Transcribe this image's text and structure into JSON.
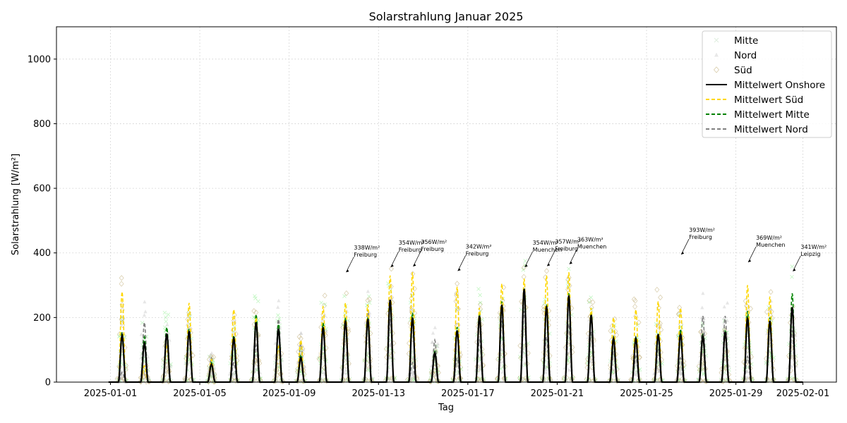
{
  "chart_data": {
    "type": "line",
    "title": "Solarstrahlung Januar 2025",
    "xlabel": "Tag",
    "ylabel": "Solarstrahlung [W/m²]",
    "xlim": [
      "2024-12-29T14:00",
      "2025-02-02T12:00"
    ],
    "ylim": [
      0,
      1100
    ],
    "grid": true,
    "legend_position": "top-right",
    "x_ticks": [
      "2025-01-01",
      "2025-01-05",
      "2025-01-09",
      "2025-01-13",
      "2025-01-17",
      "2025-01-21",
      "2025-01-25",
      "2025-01-29",
      "2025-02-01"
    ],
    "y_ticks": [
      0,
      200,
      400,
      600,
      800,
      1000
    ],
    "days": [
      "2025-01-01",
      "2025-01-02",
      "2025-01-03",
      "2025-01-04",
      "2025-01-05",
      "2025-01-06",
      "2025-01-07",
      "2025-01-08",
      "2025-01-09",
      "2025-01-10",
      "2025-01-11",
      "2025-01-12",
      "2025-01-13",
      "2025-01-14",
      "2025-01-15",
      "2025-01-16",
      "2025-01-17",
      "2025-01-18",
      "2025-01-19",
      "2025-01-20",
      "2025-01-21",
      "2025-01-22",
      "2025-01-23",
      "2025-01-24",
      "2025-01-25",
      "2025-01-26",
      "2025-01-27",
      "2025-01-28",
      "2025-01-29",
      "2025-01-30",
      "2025-01-31"
    ],
    "series": [
      {
        "name": "Mittelwert Onshore",
        "color": "#000000",
        "dash": "solid",
        "daily_peak": [
          145,
          120,
          150,
          158,
          55,
          135,
          185,
          165,
          75,
          170,
          190,
          195,
          255,
          200,
          90,
          160,
          205,
          240,
          288,
          235,
          268,
          208,
          135,
          135,
          148,
          150,
          142,
          155,
          200,
          190,
          232
        ]
      },
      {
        "name": "Mittelwert Süd",
        "color": "#ffd700",
        "dash": "dashed",
        "daily_peak": [
          280,
          50,
          110,
          245,
          70,
          225,
          200,
          110,
          130,
          235,
          245,
          240,
          330,
          340,
          90,
          295,
          230,
          305,
          320,
          330,
          340,
          230,
          200,
          225,
          250,
          230,
          140,
          150,
          300,
          265,
          235
        ]
      },
      {
        "name": "Mittelwert Mitte",
        "color": "#008000",
        "dash": "dashed",
        "daily_peak": [
          155,
          140,
          170,
          165,
          60,
          145,
          210,
          180,
          85,
          185,
          200,
          200,
          250,
          215,
          95,
          170,
          215,
          250,
          290,
          240,
          275,
          215,
          140,
          140,
          150,
          165,
          150,
          160,
          220,
          200,
          275
        ]
      },
      {
        "name": "Mittelwert Nord",
        "color": "#808080",
        "dash": "dashed",
        "daily_peak": [
          30,
          185,
          140,
          150,
          75,
          60,
          115,
          195,
          120,
          165,
          175,
          225,
          195,
          60,
          130,
          75,
          130,
          190,
          220,
          140,
          180,
          155,
          95,
          80,
          100,
          75,
          205,
          205,
          80,
          190,
          160
        ]
      }
    ],
    "scatter_series": [
      {
        "name": "Mitte",
        "marker": "x",
        "color": "#90ee90"
      },
      {
        "name": "Nord",
        "marker": "triangle",
        "color": "#c0c0c0"
      },
      {
        "name": "Süd",
        "marker": "diamond",
        "color": "#d2b48c"
      }
    ],
    "annotations": [
      {
        "day": 11,
        "value": 338,
        "label": "338W/m²",
        "station": "Freiburg"
      },
      {
        "day": 13,
        "value": 354,
        "label": "354W/m²",
        "station": "Freiburg"
      },
      {
        "day": 14,
        "value": 356,
        "label": "356W/m²",
        "station": "Freiburg"
      },
      {
        "day": 16,
        "value": 342,
        "label": "342W/m²",
        "station": "Freiburg"
      },
      {
        "day": 19,
        "value": 354,
        "label": "354W/m²",
        "station": "Muenchen"
      },
      {
        "day": 20,
        "value": 357,
        "label": "357W/m²",
        "station": "Freiburg"
      },
      {
        "day": 21,
        "value": 363,
        "label": "363W/m²",
        "station": "Muenchen"
      },
      {
        "day": 26,
        "value": 393,
        "label": "393W/m²",
        "station": "Freiburg"
      },
      {
        "day": 29,
        "value": 369,
        "label": "369W/m²",
        "station": "Muenchen"
      },
      {
        "day": 31,
        "value": 341,
        "label": "341W/m²",
        "station": "Leipzig"
      }
    ]
  }
}
